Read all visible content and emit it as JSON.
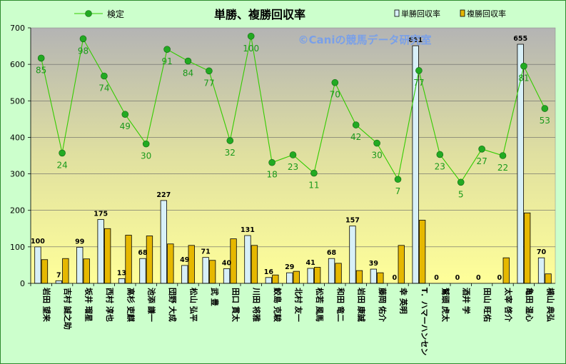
{
  "chart_data": {
    "type": "bar",
    "title": "単勝、複勝回収率",
    "watermark": "©Caniの競馬データ研究室",
    "ylim": [
      0,
      700
    ],
    "yticks": [
      0,
      100,
      200,
      300,
      400,
      500,
      600,
      700
    ],
    "grid": true,
    "legend_position": "top",
    "categories": [
      "岩田 望来",
      "吉村 誠之助",
      "坂井 瑠星",
      "西村 淳也",
      "高杉 吏麒",
      "池添 謙一",
      "団野 大成",
      "松山 弘平",
      "武 豊",
      "田口 貫太",
      "川田 将雅",
      "鮫島 克駿",
      "北村 友一",
      "松若 風馬",
      "和田 竜二",
      "岩田 康誠",
      "藤岡 佑介",
      "幸 英明",
      "T．ハマーハンセン",
      "鷲頭 虎太",
      "酒井 学",
      "田山 旺佑",
      "太宰 啓介",
      "亀田 温心",
      "横山 典弘"
    ],
    "series": [
      {
        "name": "単勝回収率",
        "type": "bar",
        "color": "#d8f0f8",
        "values": [
          100,
          7,
          99,
          175,
          13,
          68,
          227,
          49,
          71,
          40,
          131,
          16,
          29,
          41,
          68,
          157,
          39,
          0,
          651,
          0,
          0,
          0,
          0,
          655,
          70
        ]
      },
      {
        "name": "複勝回収率",
        "type": "bar",
        "color": "#e6b800",
        "values": [
          65,
          68,
          67,
          150,
          132,
          130,
          108,
          104,
          63,
          122,
          104,
          23,
          33,
          44,
          55,
          35,
          29,
          104,
          173,
          0,
          0,
          0,
          70,
          193,
          26
        ]
      },
      {
        "name": "検定",
        "type": "line",
        "color": "#33cc00",
        "values": [
          85,
          24,
          98,
          74,
          49,
          30,
          91,
          84,
          77,
          32,
          100,
          18,
          23,
          11,
          70,
          42,
          30,
          7,
          77,
          23,
          5,
          27,
          22,
          81,
          53
        ],
        "plot_values": [
          617,
          357,
          670,
          568,
          463,
          382,
          641,
          609,
          582,
          391,
          677,
          331,
          352,
          302,
          550,
          434,
          384,
          285,
          583,
          353,
          277,
          368,
          350,
          595,
          479
        ]
      }
    ]
  }
}
